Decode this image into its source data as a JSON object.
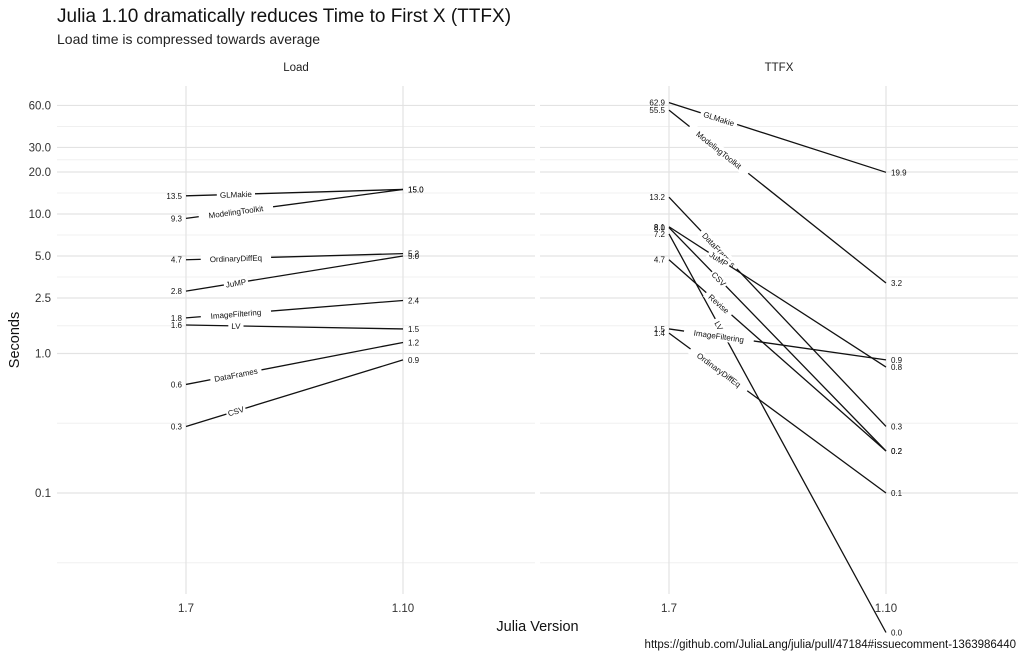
{
  "title": "Julia 1.10 dramatically reduces Time to First X (TTFX)",
  "subtitle": "Load time is compressed towards average",
  "caption": "https://github.com/JuliaLang/julia/pull/47184#issuecomment-1363986440",
  "chart_data": {
    "type": "line",
    "xlabel": "Julia Version",
    "ylabel": "Seconds",
    "x": [
      "1.7",
      "1.10"
    ],
    "y_scale": "log",
    "y_ticks": [
      {
        "value": 0.1,
        "label": "0.1"
      },
      {
        "value": 1,
        "label": "1.0"
      },
      {
        "value": 2.5,
        "label": "2.5"
      },
      {
        "value": 5,
        "label": "5.0"
      },
      {
        "value": 10,
        "label": "10.0"
      },
      {
        "value": 20,
        "label": "20.0"
      },
      {
        "value": 30,
        "label": "30.0"
      },
      {
        "value": 60,
        "label": "60.0"
      }
    ],
    "grid": true,
    "panels": [
      {
        "name": "Load",
        "series": [
          {
            "name": "GLMakie",
            "values": [
              13.5,
              15.0
            ],
            "labels": [
              "13.5",
              "15.0"
            ]
          },
          {
            "name": "ModelingToolkit",
            "values": [
              9.3,
              15.0
            ],
            "labels": [
              "9.3",
              "15.0"
            ]
          },
          {
            "name": "OrdinaryDiffEq",
            "values": [
              4.7,
              5.2
            ],
            "labels": [
              "4.7",
              "5.2"
            ]
          },
          {
            "name": "JuMP",
            "values": [
              2.8,
              5.0
            ],
            "labels": [
              "2.8",
              "5.0"
            ]
          },
          {
            "name": "ImageFiltering",
            "values": [
              1.8,
              2.4
            ],
            "labels": [
              "1.8",
              "2.4"
            ]
          },
          {
            "name": "LV",
            "values": [
              1.6,
              1.5
            ],
            "labels": [
              "1.6",
              "1.5"
            ]
          },
          {
            "name": "DataFrames",
            "values": [
              0.6,
              1.2
            ],
            "labels": [
              "0.6",
              "1.2"
            ]
          },
          {
            "name": "CSV",
            "values": [
              0.3,
              0.9
            ],
            "labels": [
              "0.3",
              "0.9"
            ]
          }
        ]
      },
      {
        "name": "TTFX",
        "series": [
          {
            "name": "GLMakie",
            "values": [
              62.9,
              19.9
            ],
            "labels": [
              "62.9",
              "19.9"
            ]
          },
          {
            "name": "ModelingToolkit",
            "values": [
              55.5,
              3.2
            ],
            "labels": [
              "55.5",
              "3.2"
            ]
          },
          {
            "name": "DataFrames",
            "values": [
              13.2,
              0.3
            ],
            "labels": [
              "13.2",
              "0.3"
            ]
          },
          {
            "name": "JuMP",
            "values": [
              8.1,
              0.8
            ],
            "labels": [
              "8.1",
              "0.8"
            ]
          },
          {
            "name": "CSV",
            "values": [
              8.0,
              0.2
            ],
            "labels": [
              "8.0",
              "0.2"
            ]
          },
          {
            "name": "LV",
            "values": [
              7.2,
              0.01
            ],
            "labels": [
              "7.2",
              "0.0"
            ]
          },
          {
            "name": "Revise",
            "values": [
              4.7,
              0.2
            ],
            "labels": [
              "4.7",
              "0.2"
            ]
          },
          {
            "name": "ImageFiltering",
            "values": [
              1.5,
              0.9
            ],
            "labels": [
              "1.5",
              "0.9"
            ]
          },
          {
            "name": "OrdinaryDiffEq",
            "values": [
              1.4,
              0.1
            ],
            "labels": [
              "1.4",
              "0.1"
            ]
          }
        ]
      }
    ]
  }
}
